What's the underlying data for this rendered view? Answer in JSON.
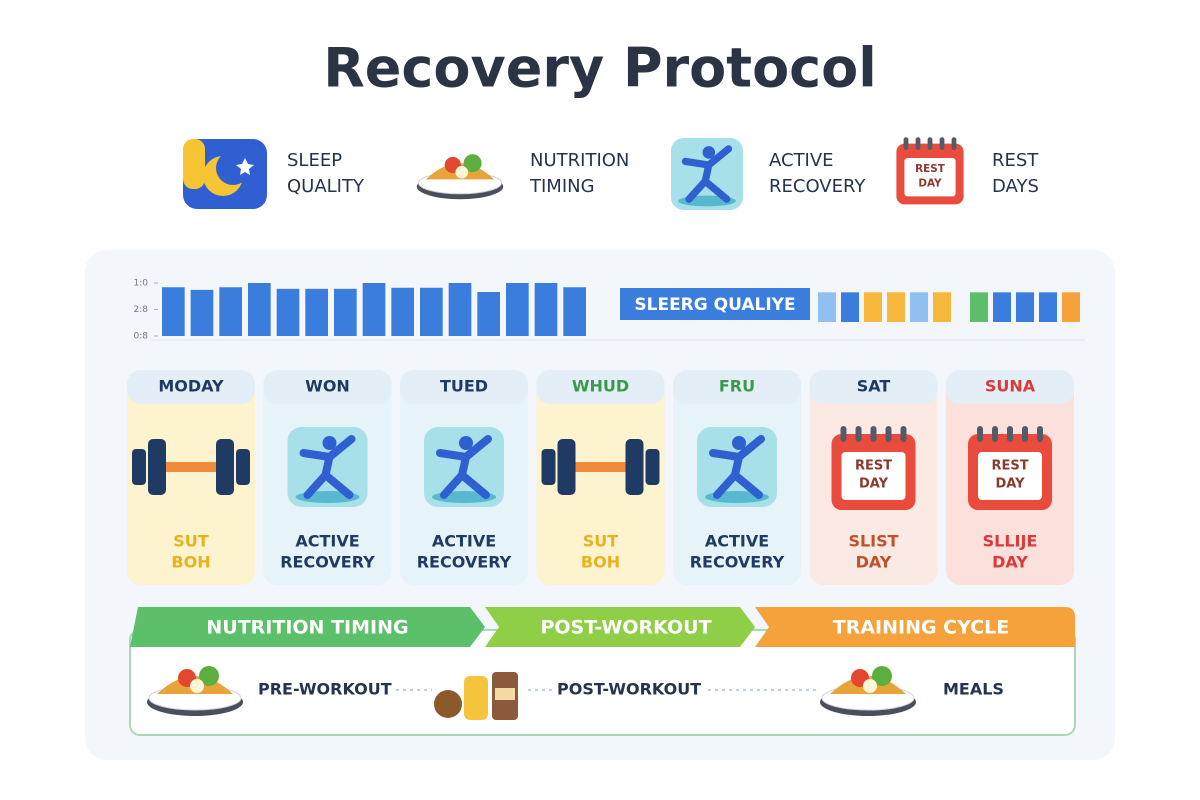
{
  "title": "Recovery Protocol",
  "legend": [
    {
      "lines": [
        "SLEEP",
        "QUALITY"
      ],
      "icon": "moon"
    },
    {
      "lines": [
        "NUTRITION",
        "TIMING"
      ],
      "icon": "bowl"
    },
    {
      "lines": [
        "ACTIVE",
        "RECOVERY"
      ],
      "icon": "figure"
    },
    {
      "lines": [
        "REST",
        "DAYS"
      ],
      "icon": "calendar",
      "icon_text": [
        "REST",
        "DAY"
      ]
    }
  ],
  "sleep_chart": {
    "type": "bar",
    "values": [
      9.2,
      8.7,
      9.2,
      10,
      8.9,
      8.9,
      8.9,
      10,
      9.1,
      9.1,
      10,
      8.3,
      10,
      10,
      9.2
    ],
    "ylim": [
      0,
      10
    ],
    "yticks": [
      {
        "value": 10,
        "label": "1:0"
      },
      {
        "value": 5,
        "label": "2:8"
      },
      {
        "value": 0,
        "label": "0:8"
      }
    ],
    "color": "#3b7ddd"
  },
  "sleep_label": "SLEERG QUALIYE",
  "mini_bars": {
    "values": [
      5.6,
      5.6,
      5.6,
      5.6,
      5.6,
      5.6,
      5.6,
      5.6,
      5.6,
      5.6,
      5.6
    ],
    "colors": [
      "#8fc0f0",
      "#3b7ddd",
      "#f6b73c",
      "#f6b73c",
      "#8fc0f0",
      "#f6b73c",
      "#5cbf6a",
      "#3b7ddd",
      "#3b7ddd",
      "#3b7ddd",
      "#f6a23c"
    ]
  },
  "days": [
    {
      "name": "MODAY",
      "icon": "dumbbell",
      "label": [
        "SUT",
        "BOH"
      ],
      "bg": "#fdf3cf",
      "head_color": "#1f3b63",
      "label_color": "#e8b21e"
    },
    {
      "name": "WON",
      "icon": "figure",
      "label": [
        "ACTIVE",
        "RECOVERY"
      ],
      "bg": "#e6f3f8",
      "head_color": "#1f3b63",
      "label_color": "#1f3b63"
    },
    {
      "name": "TUED",
      "icon": "figure",
      "label": [
        "ACTIVE",
        "RECOVERY"
      ],
      "bg": "#e6f3f8",
      "head_color": "#1f3b63",
      "label_color": "#1f3b63"
    },
    {
      "name": "WHUD",
      "icon": "dumbbell",
      "label": [
        "SUT",
        "BOH"
      ],
      "bg": "#fdf3cf",
      "head_color": "#3a9a4a",
      "label_color": "#e8b21e"
    },
    {
      "name": "FRU",
      "icon": "figure",
      "label": [
        "ACTIVE",
        "RECOVERY"
      ],
      "bg": "#e6f3f8",
      "head_color": "#3a9a4a",
      "label_color": "#1f3b63"
    },
    {
      "name": "SAT",
      "icon": "calendar",
      "icon_text": [
        "REST",
        "DAY"
      ],
      "label": [
        "SLIST",
        "DAY"
      ],
      "bg": "#fbe9e4",
      "head_color": "#1f3b63",
      "label_color": "#c2502b"
    },
    {
      "name": "SUNA",
      "icon": "calendar",
      "icon_text": [
        "REST",
        "DAY"
      ],
      "label": [
        "SLLIJE",
        "DAY"
      ],
      "bg": "#fbe0dc",
      "head_color": "#d93a3a",
      "label_color": "#d93a3a"
    }
  ],
  "banners": [
    {
      "text": "NUTRITION TIMING",
      "color": "#5cbf6a"
    },
    {
      "text": "POST-WORKOUT",
      "color": "#8fcf48"
    },
    {
      "text": "TRAINING CYCLE",
      "color": "#f6a23c"
    }
  ],
  "timeline": [
    "PRE-WORKOUT",
    "POST-WORKOUT",
    "MEALS"
  ]
}
